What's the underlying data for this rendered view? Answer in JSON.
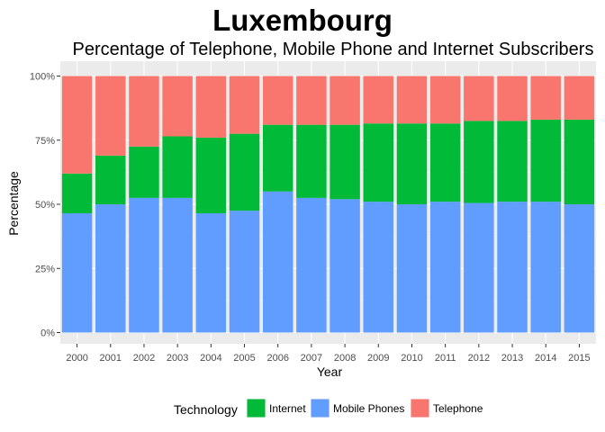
{
  "chart_data": {
    "type": "bar",
    "stacked": true,
    "title": "Luxembourg",
    "subtitle": "Percentage of Telephone, Mobile Phone and Internet Subscribers",
    "xlabel": "Year",
    "ylabel": "Percentage",
    "ylim": [
      0,
      100
    ],
    "yticks": [
      "0%",
      "25%",
      "50%",
      "75%",
      "100%"
    ],
    "ytick_values": [
      0,
      25,
      50,
      75,
      100
    ],
    "categories": [
      "2000",
      "2001",
      "2002",
      "2003",
      "2004",
      "2005",
      "2006",
      "2007",
      "2008",
      "2009",
      "2010",
      "2011",
      "2012",
      "2013",
      "2014",
      "2015"
    ],
    "legend_title": "Technology",
    "legend_position": "bottom",
    "grid": true,
    "series": [
      {
        "name": "Mobile Phones",
        "color": "#619CFF",
        "values": [
          46.5,
          50.0,
          52.5,
          52.5,
          46.5,
          47.5,
          55.0,
          52.5,
          52.0,
          51.0,
          50.0,
          51.0,
          50.5,
          51.0,
          51.0,
          50.0
        ]
      },
      {
        "name": "Internet",
        "color": "#00BA38",
        "values": [
          15.5,
          19.0,
          20.0,
          24.0,
          29.5,
          30.0,
          26.0,
          28.5,
          29.0,
          30.5,
          31.5,
          30.5,
          32.0,
          31.5,
          32.0,
          33.0
        ]
      },
      {
        "name": "Telephone",
        "color": "#F8766D",
        "values": [
          38.0,
          31.0,
          27.5,
          23.5,
          24.0,
          22.5,
          19.0,
          19.0,
          19.0,
          18.5,
          18.5,
          18.5,
          17.5,
          17.5,
          17.0,
          17.0
        ]
      }
    ],
    "legend_order": [
      "Internet",
      "Mobile Phones",
      "Telephone"
    ]
  }
}
